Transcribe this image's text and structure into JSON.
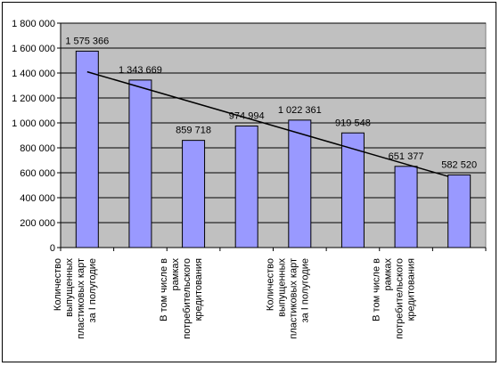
{
  "chart_data": {
    "type": "bar",
    "categories": [
      "Количество выпущенных пластиковых карт за I полугодие",
      "",
      "В том числе в рамках потребительского кредитования",
      "",
      "Количество выпущенных пластиковых карт за I полугодие",
      "",
      "В том числе в рамках потребительского кредитования",
      ""
    ],
    "category_lines": [
      [
        "Количество",
        "выпущенных",
        "пластиковых карт",
        "за I полугодие"
      ],
      [],
      [
        "В том числе в",
        "рамках",
        "потребительского",
        "кредитования"
      ],
      [],
      [
        "Количество",
        "выпущенных",
        "пластиковых карт",
        "за I полугодие"
      ],
      [],
      [
        "В том числе в",
        "рамках",
        "потребительского",
        "кредитования"
      ],
      []
    ],
    "values": [
      1575366,
      1343669,
      859718,
      974994,
      1022361,
      919548,
      651377,
      582520
    ],
    "value_labels": [
      "1 575 366",
      "1 343 669",
      "859 718",
      "974 994",
      "1 022 361",
      "919 548",
      "651 377",
      "582 520"
    ],
    "ylim": [
      0,
      1800000
    ],
    "yticks": [
      0,
      200000,
      400000,
      600000,
      800000,
      1000000,
      1200000,
      1400000,
      1600000,
      1800000
    ],
    "ytick_labels": [
      "0",
      "200 000",
      "400 000",
      "600 000",
      "800 000",
      "1 000 000",
      "1 200 000",
      "1 400 000",
      "1 600 000",
      "1 800 000"
    ],
    "trendline": {
      "type": "linear",
      "start": 1410000,
      "end": 570000
    },
    "grid": true,
    "colors": {
      "plot_bg": "#c0c0c0",
      "bar": "#9999ff",
      "bar_edge": "#000000",
      "grid": "#000000",
      "trend": "#000000"
    }
  }
}
